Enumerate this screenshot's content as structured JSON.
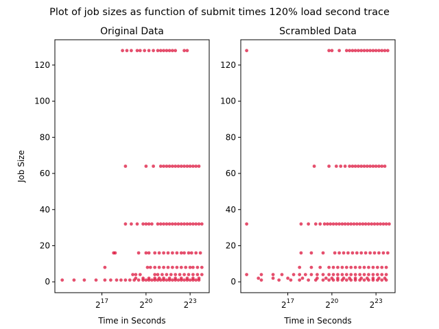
{
  "figure": {
    "suptitle": "Plot of job sizes as function of submit times 120% load second trace"
  },
  "colors": {
    "points": "#dc143c",
    "axes": "#000000",
    "background": "#ffffff"
  },
  "chart_data": [
    {
      "type": "scatter",
      "title": "Original Data",
      "xlabel": "Time in Seconds",
      "ylabel": "Job Size",
      "xscale": "log2",
      "xlim_log2": [
        13.8,
        24.3
      ],
      "ylim": [
        -6,
        134
      ],
      "xticks": [
        17,
        20,
        23
      ],
      "yticks": [
        0,
        20,
        40,
        60,
        80,
        100,
        120
      ],
      "ytick_labels": [
        "0",
        "20",
        "40",
        "60",
        "80",
        "100",
        "120"
      ],
      "grid": false,
      "points_log2_time": [
        {
          "y": 128,
          "x": [
            18.4,
            18.7,
            19.0,
            19.4,
            19.6,
            19.9,
            20.2,
            20.5,
            20.8,
            21.0,
            21.2,
            21.4,
            21.6,
            21.8,
            22.0,
            22.6,
            22.8
          ]
        },
        {
          "y": 64,
          "x": [
            18.6,
            20.0,
            20.5,
            21.0,
            21.2,
            21.4,
            21.6,
            21.8,
            22.0,
            22.2,
            22.4,
            22.6,
            22.8,
            23.0,
            23.2,
            23.4,
            23.6
          ]
        },
        {
          "y": 32,
          "x": [
            18.6,
            19.0,
            19.4,
            19.8,
            20.0,
            20.2,
            20.4,
            20.8,
            21.0,
            21.2,
            21.4,
            21.6,
            21.8,
            22.0,
            22.2,
            22.4,
            22.6,
            22.8,
            23.0,
            23.2,
            23.4,
            23.6,
            23.8
          ]
        },
        {
          "y": 16,
          "x": [
            17.8,
            17.9,
            19.5,
            20.0,
            20.2,
            20.6,
            20.9,
            21.2,
            21.5,
            21.8,
            22.1,
            22.4,
            22.6,
            22.9,
            23.1,
            23.4,
            23.7
          ]
        },
        {
          "y": 8,
          "x": [
            17.2,
            20.1,
            20.3,
            20.6,
            20.9,
            21.2,
            21.5,
            21.8,
            22.1,
            22.4,
            22.7,
            23.0,
            23.2,
            23.5,
            23.8
          ]
        },
        {
          "y": 4,
          "x": [
            19.1,
            19.3,
            19.6,
            20.6,
            20.8,
            21.1,
            21.4,
            21.7,
            22.0,
            22.3,
            22.6,
            22.9,
            23.2,
            23.5,
            23.8
          ]
        },
        {
          "y": 2,
          "x": [
            19.3,
            19.8,
            20.2,
            20.6,
            20.9,
            21.2,
            21.6,
            22.0,
            22.4,
            22.8,
            23.2,
            23.6
          ]
        },
        {
          "y": 1,
          "x": [
            14.3,
            15.1,
            15.8,
            16.6,
            17.2,
            17.6,
            18.0,
            18.3,
            18.6,
            18.9,
            19.2,
            19.5,
            19.8,
            20.0,
            20.2,
            20.4,
            20.6,
            20.8,
            21.0,
            21.2,
            21.4,
            21.6,
            21.8,
            22.0,
            22.2,
            22.4,
            22.6,
            22.8,
            23.0,
            23.2,
            23.4,
            23.6
          ]
        }
      ]
    },
    {
      "type": "scatter",
      "title": "Scrambled Data",
      "xlabel": "Time in Seconds",
      "ylabel": "",
      "xscale": "log2",
      "xlim_log2": [
        13.8,
        24.3
      ],
      "ylim": [
        -6,
        134
      ],
      "xticks": [
        17,
        20,
        23
      ],
      "yticks": [
        0,
        20,
        40,
        60,
        80,
        100,
        120
      ],
      "ytick_labels": [
        "0",
        "20",
        "40",
        "60",
        "80",
        "100",
        "120"
      ],
      "grid": false,
      "points_log2_time": [
        {
          "y": 128,
          "x": [
            14.2,
            19.8,
            20.0,
            20.5,
            21.0,
            21.2,
            21.4,
            21.6,
            21.8,
            22.0,
            22.2,
            22.4,
            22.6,
            22.8,
            23.0,
            23.2,
            23.4,
            23.6,
            23.8
          ]
        },
        {
          "y": 64,
          "x": [
            18.8,
            19.8,
            20.3,
            20.6,
            20.9,
            21.2,
            21.4,
            21.6,
            21.8,
            22.0,
            22.2,
            22.4,
            22.6,
            22.8,
            23.0,
            23.2,
            23.4,
            23.6
          ]
        },
        {
          "y": 32,
          "x": [
            14.2,
            17.9,
            18.4,
            18.9,
            19.2,
            19.5,
            19.7,
            19.9,
            20.1,
            20.3,
            20.5,
            20.7,
            20.9,
            21.1,
            21.3,
            21.5,
            21.7,
            21.9,
            22.1,
            22.3,
            22.5,
            22.7,
            22.9,
            23.1,
            23.3,
            23.5,
            23.7,
            23.9
          ]
        },
        {
          "y": 16,
          "x": [
            17.9,
            18.6,
            19.4,
            20.2,
            20.5,
            20.8,
            21.1,
            21.4,
            21.7,
            22.0,
            22.3,
            22.6,
            22.9,
            23.2,
            23.5,
            23.8
          ]
        },
        {
          "y": 8,
          "x": [
            17.8,
            18.6,
            19.2,
            19.8,
            20.1,
            20.4,
            20.7,
            21.0,
            21.3,
            21.6,
            21.9,
            22.2,
            22.5,
            22.8,
            23.1,
            23.4,
            23.7
          ]
        },
        {
          "y": 4,
          "x": [
            14.2,
            15.2,
            16.0,
            16.6,
            17.4,
            17.8,
            18.2,
            18.6,
            19.0,
            19.4,
            19.8,
            20.1,
            20.4,
            20.7,
            21.0,
            21.3,
            21.6,
            21.9,
            22.2,
            22.5,
            22.8,
            23.1,
            23.4,
            23.7
          ]
        },
        {
          "y": 2,
          "x": [
            15.0,
            16.0,
            17.0,
            18.0,
            19.0,
            19.6,
            20.0,
            20.4,
            20.8,
            21.2,
            21.6,
            22.0,
            22.4,
            22.8,
            23.2,
            23.6
          ]
        },
        {
          "y": 1,
          "x": [
            15.2,
            16.4,
            17.2,
            17.8,
            18.4,
            18.9,
            19.4,
            19.8,
            20.1,
            20.4,
            20.7,
            21.0,
            21.3,
            21.6,
            21.9,
            22.2,
            22.5,
            22.8,
            23.1,
            23.4,
            23.7
          ]
        }
      ]
    }
  ]
}
